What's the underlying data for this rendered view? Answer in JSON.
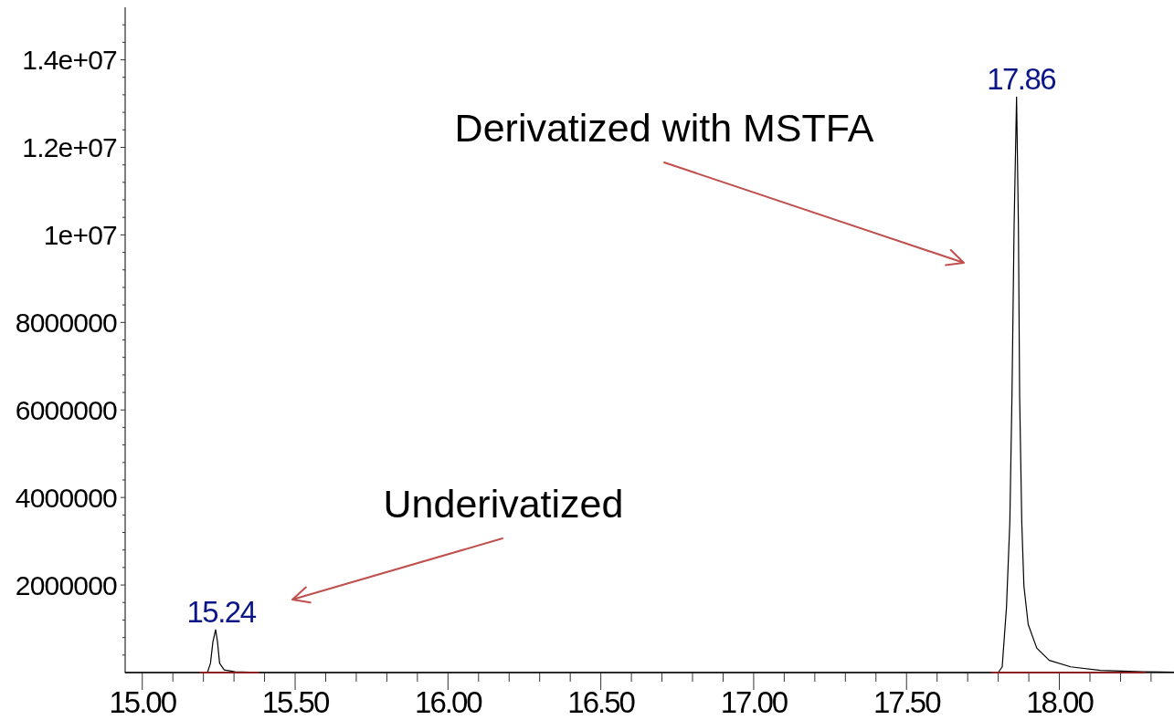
{
  "chart_data": {
    "type": "line",
    "xlim": [
      14.944,
      18.375
    ],
    "ylim": [
      0,
      15200000
    ],
    "xticks": [
      {
        "value": 15,
        "label": "15.00"
      },
      {
        "value": 15.1,
        "label": null
      },
      {
        "value": 15.2,
        "label": null
      },
      {
        "value": 15.3,
        "label": null
      },
      {
        "value": 15.4,
        "label": null
      },
      {
        "value": 15.5,
        "label": "15.50"
      },
      {
        "value": 15.6,
        "label": null
      },
      {
        "value": 15.7,
        "label": null
      },
      {
        "value": 15.8,
        "label": null
      },
      {
        "value": 15.9,
        "label": null
      },
      {
        "value": 16,
        "label": "16.00"
      },
      {
        "value": 16.1,
        "label": null
      },
      {
        "value": 16.2,
        "label": null
      },
      {
        "value": 16.3,
        "label": null
      },
      {
        "value": 16.4,
        "label": null
      },
      {
        "value": 16.5,
        "label": "16.50"
      },
      {
        "value": 16.6,
        "label": null
      },
      {
        "value": 16.7,
        "label": null
      },
      {
        "value": 16.8,
        "label": null
      },
      {
        "value": 16.9,
        "label": null
      },
      {
        "value": 17,
        "label": "17.00"
      },
      {
        "value": 17.1,
        "label": null
      },
      {
        "value": 17.2,
        "label": null
      },
      {
        "value": 17.3,
        "label": null
      },
      {
        "value": 17.4,
        "label": null
      },
      {
        "value": 17.5,
        "label": "17.50"
      },
      {
        "value": 17.6,
        "label": null
      },
      {
        "value": 17.7,
        "label": null
      },
      {
        "value": 17.8,
        "label": null
      },
      {
        "value": 17.9,
        "label": null
      },
      {
        "value": 18,
        "label": "18.00"
      },
      {
        "value": 18.1,
        "label": null
      },
      {
        "value": 18.2,
        "label": null
      },
      {
        "value": 18.3,
        "label": null
      }
    ],
    "yticks": [
      {
        "value": 400000,
        "label": null
      },
      {
        "value": 800000,
        "label": null
      },
      {
        "value": 1200000,
        "label": null
      },
      {
        "value": 1600000,
        "label": null
      },
      2000000,
      {
        "value": 2400000,
        "label": null
      },
      {
        "value": 2800000,
        "label": null
      },
      {
        "value": 3200000,
        "label": null
      },
      {
        "value": 3600000,
        "label": null
      },
      4000000,
      {
        "value": 4400000,
        "label": null
      },
      {
        "value": 4800000,
        "label": null
      },
      {
        "value": 5200000,
        "label": null
      },
      {
        "value": 5600000,
        "label": null
      },
      6000000,
      {
        "value": 6400000,
        "label": null
      },
      {
        "value": 6800000,
        "label": null
      },
      {
        "value": 7200000,
        "label": null
      },
      {
        "value": 7600000,
        "label": null
      },
      8000000,
      {
        "value": 8400000,
        "label": null
      },
      {
        "value": 8800000,
        "label": null
      },
      {
        "value": 9200000,
        "label": null
      },
      {
        "value": 9600000,
        "label": null
      },
      {
        "value": 10000000,
        "label": "1e+07"
      },
      {
        "value": 10400000,
        "label": null
      },
      {
        "value": 10800000,
        "label": null
      },
      {
        "value": 11200000,
        "label": null
      },
      {
        "value": 11600000,
        "label": null
      },
      {
        "value": 12000000,
        "label": "1.2e+07"
      },
      {
        "value": 12400000,
        "label": null
      },
      {
        "value": 12800000,
        "label": null
      },
      {
        "value": 13200000,
        "label": null
      },
      {
        "value": 13600000,
        "label": null
      },
      {
        "value": 14000000,
        "label": "1.4e+07"
      },
      {
        "value": 14400000,
        "label": null
      },
      {
        "value": 14800000,
        "label": null
      }
    ],
    "series": [
      {
        "color": "#000000",
        "x": [
          14.944,
          15.0,
          15.1,
          15.2,
          15.213,
          15.223,
          15.231,
          15.24,
          15.246,
          15.253,
          15.268,
          15.303,
          15.4,
          15.6,
          16.0,
          16.5,
          17.0,
          17.5,
          17.7,
          17.8,
          17.813,
          17.827,
          17.838,
          17.845,
          17.852,
          17.86,
          17.866,
          17.87,
          17.877,
          17.884,
          17.898,
          17.926,
          17.967,
          18.037,
          18.134,
          18.274,
          18.375
        ],
        "values": [
          0,
          0,
          0,
          0,
          0,
          210000,
          700000,
          980000,
          700000,
          210000,
          60000,
          20000,
          0,
          0,
          0,
          0,
          0,
          0,
          0,
          0,
          130000,
          1490000,
          3440000,
          6340000,
          10230000,
          13150000,
          10230000,
          6340000,
          3440000,
          1980000,
          1100000,
          560000,
          280000,
          130000,
          50000,
          20000,
          10000
        ]
      },
      {
        "color": "#8b2020",
        "x": [
          15.19,
          15.38
        ],
        "values": [
          0,
          0
        ]
      },
      {
        "color": "#8b2020",
        "x": [
          17.78,
          18.28
        ],
        "values": [
          0,
          0
        ]
      }
    ],
    "annotations": [
      {
        "text": "17.86",
        "x": 17.86,
        "y": 13150000
      },
      "Derivatized with MSTFA",
      "Underivatized",
      {
        "text": "15.24",
        "x": 15.24,
        "y": 980000
      }
    ]
  }
}
